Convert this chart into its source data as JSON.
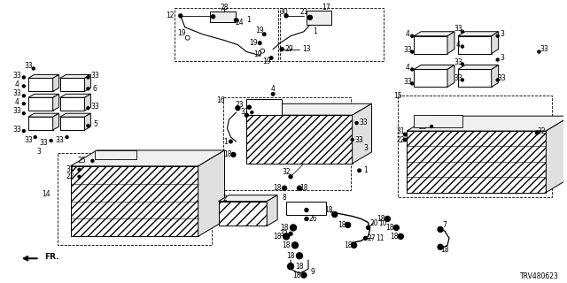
{
  "bg_color": "#ffffff",
  "diagram_id": "TRV480623",
  "fig_width": 6.4,
  "fig_height": 3.2,
  "dpi": 100,
  "line_color": "#000000",
  "text_color": "#000000"
}
